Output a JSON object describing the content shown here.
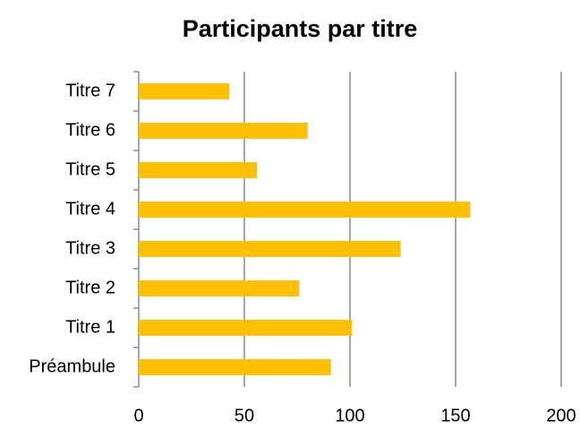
{
  "chart_data": {
    "type": "bar",
    "orientation": "horizontal",
    "title": "Participants par titre",
    "categories": [
      "Préambule",
      "Titre 1",
      "Titre 2",
      "Titre 3",
      "Titre 4",
      "Titre 5",
      "Titre 6",
      "Titre 7"
    ],
    "values": [
      91,
      101,
      76,
      124,
      157,
      56,
      80,
      43
    ],
    "color": "#ffc000",
    "xlim": [
      0,
      200
    ],
    "xticks": [
      0,
      50,
      100,
      150,
      200
    ],
    "grid": true
  }
}
